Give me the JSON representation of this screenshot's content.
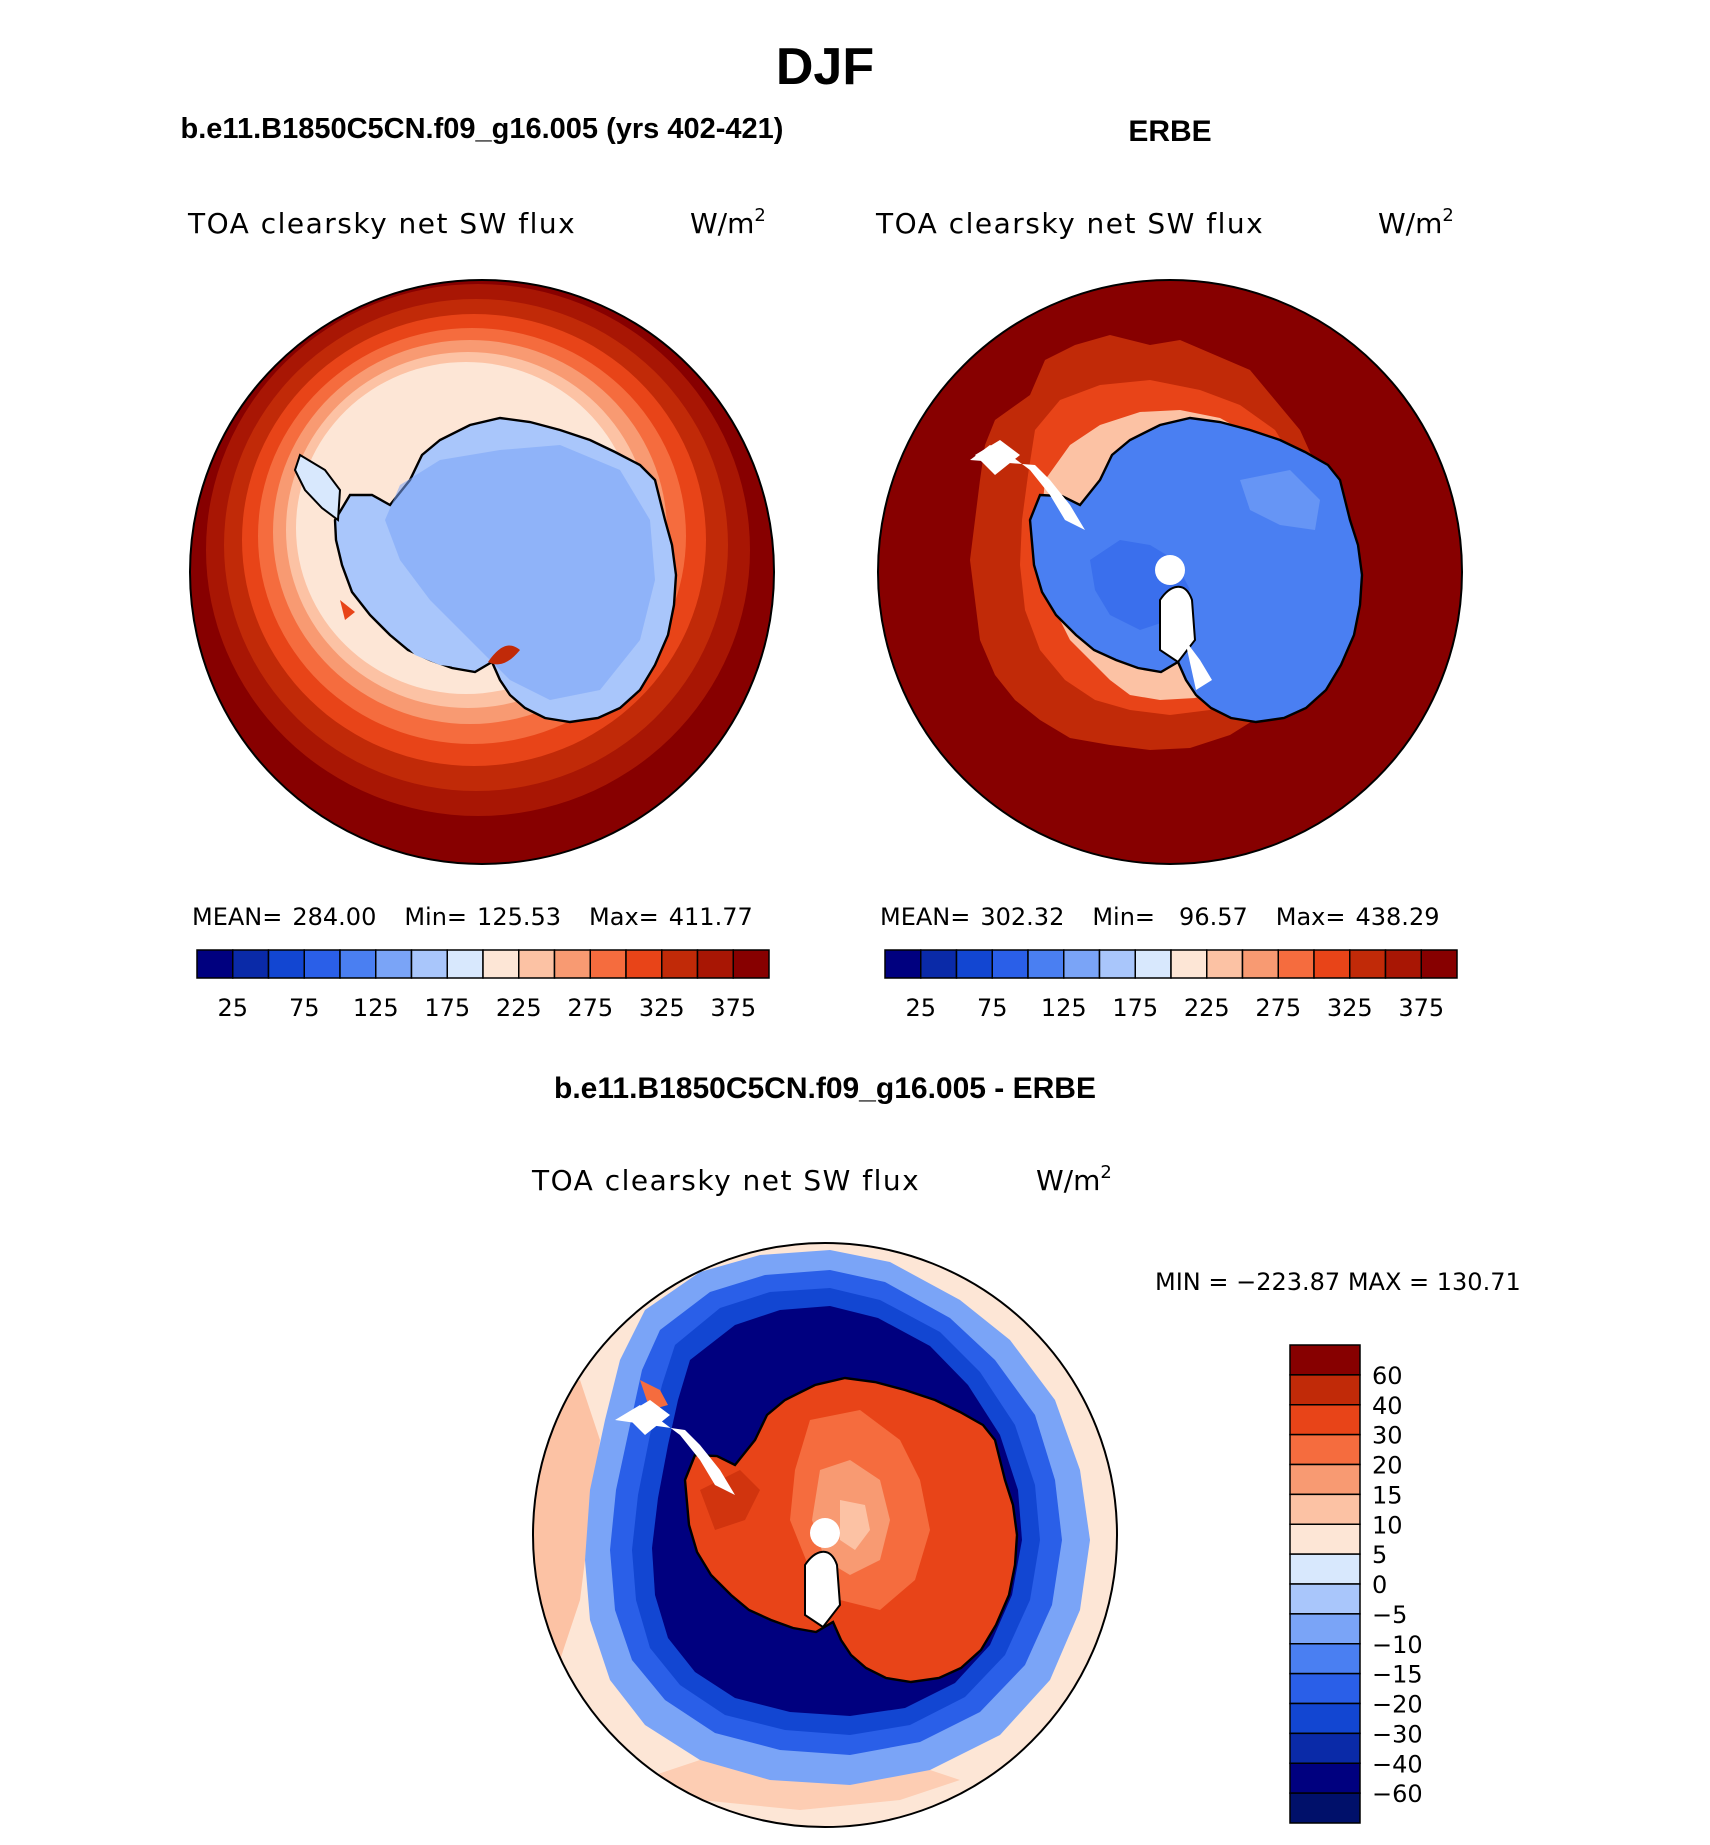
{
  "season": "DJF",
  "panels": {
    "model": {
      "title": "b.e11.B1850C5CN.f09_g16.005 (yrs 402-421)",
      "variable": "TOA clearsky net SW flux",
      "units_base": "W/m",
      "units_exp": "2",
      "stats": {
        "mean_label": "MEAN=",
        "mean": "284.00",
        "min_label": "Min=",
        "min": "125.53",
        "max_label": "Max=",
        "max": "411.77"
      },
      "colorbar_ticks": [
        "25",
        "75",
        "125",
        "175",
        "225",
        "275",
        "325",
        "375"
      ]
    },
    "obs": {
      "title": "ERBE",
      "variable": "TOA clearsky net SW flux",
      "units_base": "W/m",
      "units_exp": "2",
      "stats": {
        "mean_label": "MEAN=",
        "mean": "302.32",
        "min_label": "Min=",
        "min": "96.57",
        "max_label": "Max=",
        "max": "438.29"
      },
      "colorbar_ticks": [
        "25",
        "75",
        "125",
        "175",
        "225",
        "275",
        "325",
        "375"
      ]
    },
    "diff": {
      "title": "b.e11.B1850C5CN.f09_g16.005 - ERBE",
      "variable": "TOA clearsky net SW flux",
      "units_base": "W/m",
      "units_exp": "2",
      "minmax": "MIN = −223.87  MAX = 130.71",
      "colorbar_ticks": [
        "60",
        "40",
        "30",
        "20",
        "15",
        "10",
        "5",
        "0",
        "−5",
        "−10",
        "−15",
        "−20",
        "−30",
        "−40",
        "−60"
      ]
    }
  },
  "colors": {
    "abs_palette": [
      "#00007f",
      "#0a2aa8",
      "#1246d2",
      "#2a5fe8",
      "#4a7ff2",
      "#7aa4f7",
      "#a9c6fb",
      "#d8e8fd",
      "#fde6d6",
      "#fcc2a4",
      "#f89a72",
      "#f56c3e",
      "#e84418",
      "#c12a08",
      "#a81604",
      "#870000"
    ],
    "diff_palette": [
      "#870000",
      "#c12a08",
      "#e84418",
      "#f56c3e",
      "#f89a72",
      "#fcc2a4",
      "#fde6d6",
      "#d8e8fd",
      "#a9c6fb",
      "#7aa4f7",
      "#4a7ff2",
      "#2a5fe8",
      "#1246d2",
      "#0a2aa8",
      "#00007f",
      "#00106a"
    ]
  }
}
